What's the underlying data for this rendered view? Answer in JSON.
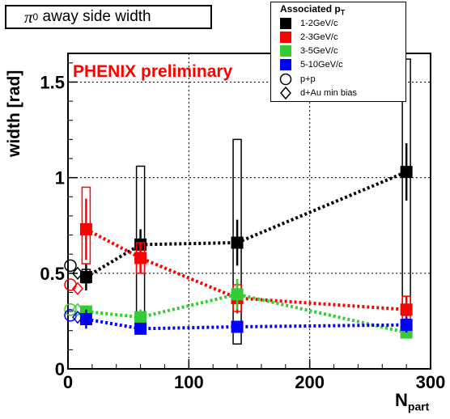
{
  "title": {
    "symbol": "π",
    "sup": "0",
    "text": " away side width"
  },
  "preliminary_label": "PHENIX preliminary",
  "legend": {
    "header": "Associated p",
    "header_sub": "T",
    "entries": [
      {
        "label": "1-2GeV/c",
        "color": "#000000",
        "marker": "square"
      },
      {
        "label": "2-3GeV/c",
        "color": "#ff0000",
        "marker": "square"
      },
      {
        "label": "3-5GeV/c",
        "color": "#33cc33",
        "marker": "square"
      },
      {
        "label": "5-10GeV/c",
        "color": "#0000ff",
        "marker": "square"
      },
      {
        "label": "p+p",
        "color": "#000000",
        "marker": "open-circle"
      },
      {
        "label": "d+Au min bias",
        "color": "#000000",
        "marker": "open-diamond"
      }
    ]
  },
  "chart_data": {
    "type": "scatter",
    "title": "π0 away side width",
    "xlabel": "N",
    "xlabel_sub": "part",
    "ylabel": "width [rad]",
    "xlim": [
      0,
      300
    ],
    "ylim": [
      0,
      1.65
    ],
    "xticks": [
      0,
      100,
      200,
      300
    ],
    "xtick_labels": [
      "0",
      "100",
      "200",
      "300"
    ],
    "yticks": [
      0,
      0.5,
      1,
      1.5
    ],
    "ytick_labels": [
      "0",
      "0.5",
      "1",
      "1.5"
    ],
    "grid": true,
    "series": [
      {
        "name": "1-2GeV/c",
        "color": "#000000",
        "x": [
          15,
          60,
          140,
          280
        ],
        "y": [
          0.48,
          0.65,
          0.66,
          1.03
        ],
        "err": [
          0.07,
          0.08,
          0.12,
          0.15
        ],
        "sys": [
          [
            0.45,
            0.52
          ],
          [
            0.28,
            1.06
          ],
          [
            0.13,
            1.2
          ],
          [
            0.28,
            1.62
          ]
        ]
      },
      {
        "name": "2-3GeV/c",
        "color": "#ff0000",
        "x": [
          15,
          60,
          140,
          280
        ],
        "y": [
          0.73,
          0.58,
          0.37,
          0.31
        ],
        "err": [
          0.16,
          0.08,
          0.08,
          0.07
        ],
        "sys": [
          [
            0.55,
            0.95
          ],
          [
            0.5,
            0.66
          ],
          [
            0.3,
            0.44
          ],
          [
            0.26,
            0.38
          ]
        ]
      },
      {
        "name": "3-5GeV/c",
        "color": "#33cc33",
        "x": [
          15,
          60,
          140,
          280
        ],
        "y": [
          0.3,
          0.27,
          0.39,
          0.19
        ],
        "err": [
          0.03,
          0.04,
          0.08,
          0.03
        ],
        "sys": null
      },
      {
        "name": "5-10GeV/c",
        "color": "#0000ff",
        "x": [
          15,
          60,
          140,
          280
        ],
        "y": [
          0.26,
          0.21,
          0.22,
          0.23
        ],
        "err": [
          0.05,
          0.03,
          0.03,
          0.04
        ],
        "sys": null
      }
    ],
    "pp": [
      {
        "series": "1-2GeV/c",
        "x": 2,
        "y": 0.54,
        "color": "#000000"
      },
      {
        "series": "2-3GeV/c",
        "x": 2,
        "y": 0.44,
        "color": "#ff0000"
      },
      {
        "series": "3-5GeV/c",
        "x": 2,
        "y": 0.31,
        "color": "#33cc33"
      },
      {
        "series": "5-10GeV/c",
        "x": 2,
        "y": 0.28,
        "color": "#0000ff"
      }
    ],
    "dau": [
      {
        "series": "1-2GeV/c",
        "x": 8,
        "y": 0.5,
        "color": "#000000"
      },
      {
        "series": "2-3GeV/c",
        "x": 8,
        "y": 0.42,
        "color": "#ff0000"
      },
      {
        "series": "3-5GeV/c",
        "x": 8,
        "y": 0.31,
        "color": "#33cc33"
      },
      {
        "series": "5-10GeV/c",
        "x": 8,
        "y": 0.27,
        "color": "#0000ff"
      }
    ]
  }
}
